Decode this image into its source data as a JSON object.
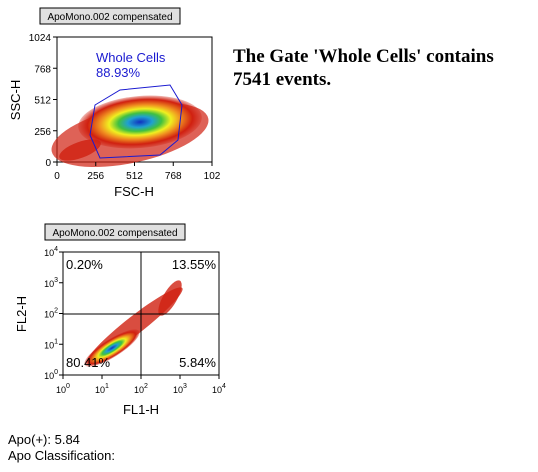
{
  "plots": [
    {
      "header": "ApoMono.002 compensated",
      "ylabel": "SSC-H",
      "xlabel": "FSC-H",
      "yticks": [
        "1024",
        "768",
        "512",
        "256",
        "0"
      ],
      "xticks": [
        "0",
        "256",
        "512",
        "768",
        "102"
      ],
      "gate": {
        "name": "Whole Cells",
        "percent": "88.93%"
      }
    },
    {
      "header": "ApoMono.002 compensated",
      "ylabel": "FL2-H",
      "xlabel": "FL1-H",
      "yticks": [
        {
          "base": "10",
          "exp": "4"
        },
        {
          "base": "10",
          "exp": "3"
        },
        {
          "base": "10",
          "exp": "2"
        },
        {
          "base": "10",
          "exp": "1"
        },
        {
          "base": "10",
          "exp": "0"
        }
      ],
      "xticks": [
        {
          "base": "10",
          "exp": "0"
        },
        {
          "base": "10",
          "exp": "1"
        },
        {
          "base": "10",
          "exp": "2"
        },
        {
          "base": "10",
          "exp": "3"
        },
        {
          "base": "10",
          "exp": "4"
        }
      ],
      "quadrants": [
        "0.20%",
        "13.55%",
        "80.41%",
        "5.84%"
      ]
    }
  ],
  "message": "The Gate 'Whole Cells' contains 7541 events.",
  "stats": [
    "Apo(+): 5.84",
    "Apo Classification:"
  ]
}
